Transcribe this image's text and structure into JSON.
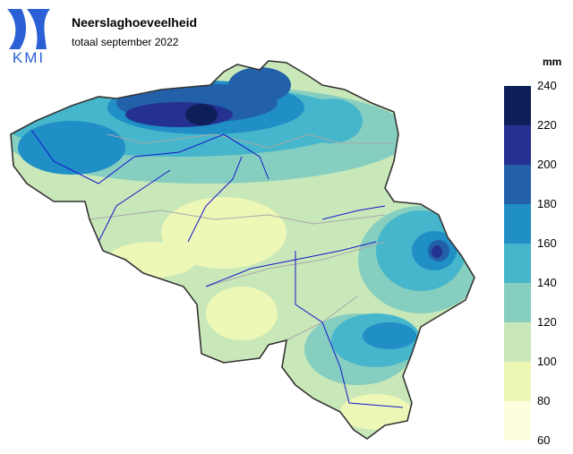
{
  "header": {
    "title": "Neerslaghoeveelheid",
    "subtitle": "totaal september 2022",
    "logo": "KMI"
  },
  "legend": {
    "unit": "mm",
    "ticks": [
      60,
      80,
      100,
      120,
      140,
      160,
      180,
      200,
      220,
      240
    ],
    "colors": [
      "#fdfee0",
      "#edf7b6",
      "#c9e8b9",
      "#86cec0",
      "#45b6cb",
      "#1f8fc6",
      "#2261aa",
      "#243190",
      "#0d1f58"
    ]
  }
}
